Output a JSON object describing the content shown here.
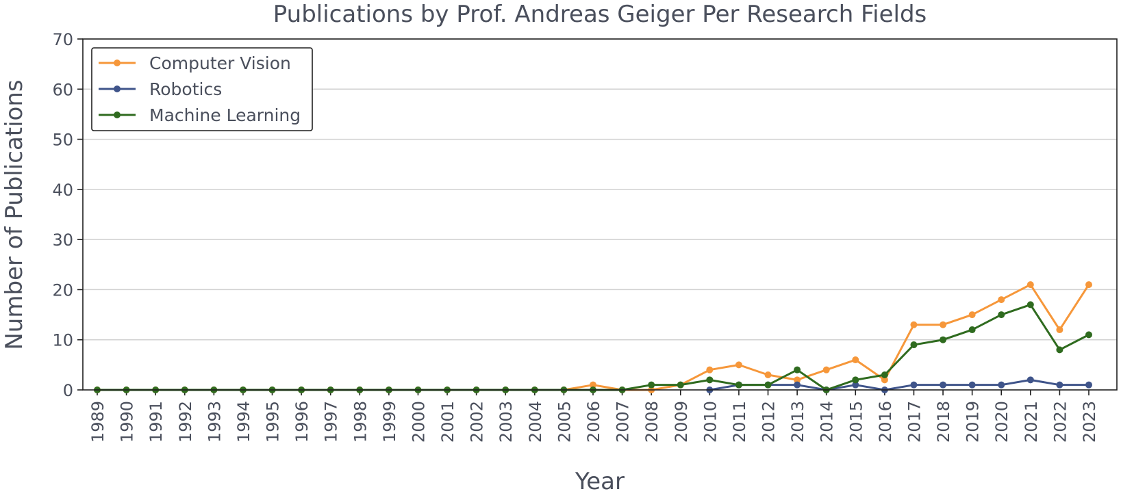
{
  "chart_data": {
    "type": "line",
    "title": "Publications by Prof. Andreas Geiger Per Research Fields",
    "xlabel": "Year",
    "ylabel": "Number of Publications",
    "ylim": [
      0,
      70
    ],
    "yticks": [
      0,
      10,
      20,
      30,
      40,
      50,
      60,
      70
    ],
    "grid": "horizontal",
    "legend_position": "top-left",
    "x": [
      "1989",
      "1990",
      "1991",
      "1992",
      "1993",
      "1994",
      "1995",
      "1996",
      "1997",
      "1998",
      "1999",
      "2000",
      "2001",
      "2002",
      "2003",
      "2004",
      "2005",
      "2006",
      "2007",
      "2008",
      "2009",
      "2010",
      "2011",
      "2012",
      "2013",
      "2014",
      "2015",
      "2016",
      "2017",
      "2018",
      "2019",
      "2020",
      "2021",
      "2022",
      "2023"
    ],
    "series": [
      {
        "name": "Computer Vision",
        "color": "#f6973a",
        "values": [
          0,
          0,
          0,
          0,
          0,
          0,
          0,
          0,
          0,
          0,
          0,
          0,
          0,
          0,
          0,
          0,
          0,
          1,
          0,
          0,
          1,
          4,
          5,
          3,
          2,
          4,
          6,
          2,
          13,
          13,
          15,
          18,
          21,
          12,
          21
        ]
      },
      {
        "name": "Robotics",
        "color": "#3f548a",
        "values": [
          null,
          null,
          null,
          null,
          null,
          null,
          null,
          null,
          null,
          null,
          null,
          null,
          null,
          null,
          null,
          null,
          null,
          null,
          null,
          null,
          null,
          0,
          1,
          1,
          1,
          0,
          1,
          0,
          1,
          1,
          1,
          1,
          2,
          1,
          1
        ]
      },
      {
        "name": "Machine Learning",
        "color": "#2f6b1f",
        "values": [
          0,
          0,
          0,
          0,
          0,
          0,
          0,
          0,
          0,
          0,
          0,
          0,
          0,
          0,
          0,
          0,
          0,
          0,
          0,
          1,
          1,
          2,
          1,
          1,
          4,
          0,
          2,
          3,
          9,
          10,
          12,
          15,
          17,
          8,
          11
        ]
      }
    ]
  }
}
